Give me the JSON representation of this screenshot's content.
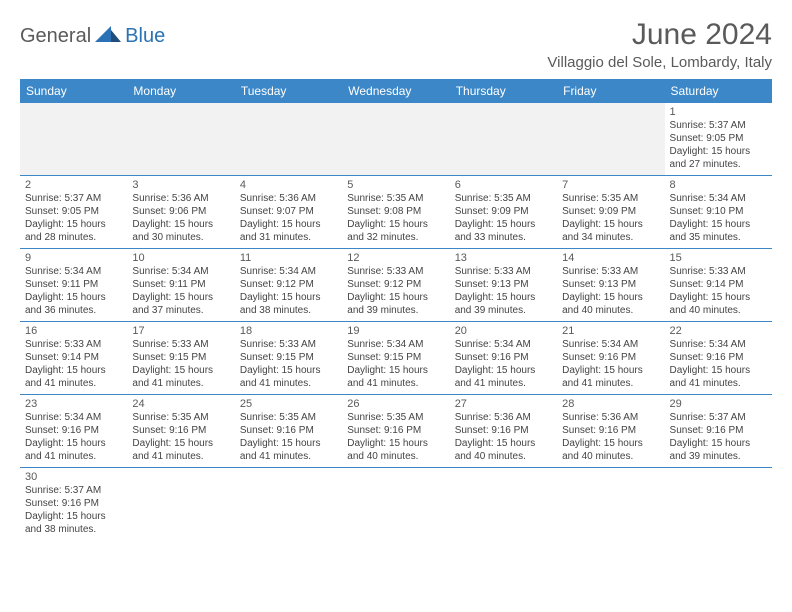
{
  "brand": {
    "part1": "General",
    "part2": "Blue"
  },
  "title": "June 2024",
  "location": "Villaggio del Sole, Lombardy, Italy",
  "colors": {
    "header_bg": "#3b87c8",
    "header_text": "#ffffff",
    "brand_gray": "#5a5a5a",
    "brand_blue": "#2a72b5",
    "cell_border": "#3b87c8",
    "empty_bg": "#f2f2f2"
  },
  "weekdays": [
    "Sunday",
    "Monday",
    "Tuesday",
    "Wednesday",
    "Thursday",
    "Friday",
    "Saturday"
  ],
  "days": {
    "1": {
      "sunrise": "5:37 AM",
      "sunset": "9:05 PM",
      "daylight": "15 hours and 27 minutes."
    },
    "2": {
      "sunrise": "5:37 AM",
      "sunset": "9:05 PM",
      "daylight": "15 hours and 28 minutes."
    },
    "3": {
      "sunrise": "5:36 AM",
      "sunset": "9:06 PM",
      "daylight": "15 hours and 30 minutes."
    },
    "4": {
      "sunrise": "5:36 AM",
      "sunset": "9:07 PM",
      "daylight": "15 hours and 31 minutes."
    },
    "5": {
      "sunrise": "5:35 AM",
      "sunset": "9:08 PM",
      "daylight": "15 hours and 32 minutes."
    },
    "6": {
      "sunrise": "5:35 AM",
      "sunset": "9:09 PM",
      "daylight": "15 hours and 33 minutes."
    },
    "7": {
      "sunrise": "5:35 AM",
      "sunset": "9:09 PM",
      "daylight": "15 hours and 34 minutes."
    },
    "8": {
      "sunrise": "5:34 AM",
      "sunset": "9:10 PM",
      "daylight": "15 hours and 35 minutes."
    },
    "9": {
      "sunrise": "5:34 AM",
      "sunset": "9:11 PM",
      "daylight": "15 hours and 36 minutes."
    },
    "10": {
      "sunrise": "5:34 AM",
      "sunset": "9:11 PM",
      "daylight": "15 hours and 37 minutes."
    },
    "11": {
      "sunrise": "5:34 AM",
      "sunset": "9:12 PM",
      "daylight": "15 hours and 38 minutes."
    },
    "12": {
      "sunrise": "5:33 AM",
      "sunset": "9:12 PM",
      "daylight": "15 hours and 39 minutes."
    },
    "13": {
      "sunrise": "5:33 AM",
      "sunset": "9:13 PM",
      "daylight": "15 hours and 39 minutes."
    },
    "14": {
      "sunrise": "5:33 AM",
      "sunset": "9:13 PM",
      "daylight": "15 hours and 40 minutes."
    },
    "15": {
      "sunrise": "5:33 AM",
      "sunset": "9:14 PM",
      "daylight": "15 hours and 40 minutes."
    },
    "16": {
      "sunrise": "5:33 AM",
      "sunset": "9:14 PM",
      "daylight": "15 hours and 41 minutes."
    },
    "17": {
      "sunrise": "5:33 AM",
      "sunset": "9:15 PM",
      "daylight": "15 hours and 41 minutes."
    },
    "18": {
      "sunrise": "5:33 AM",
      "sunset": "9:15 PM",
      "daylight": "15 hours and 41 minutes."
    },
    "19": {
      "sunrise": "5:34 AM",
      "sunset": "9:15 PM",
      "daylight": "15 hours and 41 minutes."
    },
    "20": {
      "sunrise": "5:34 AM",
      "sunset": "9:16 PM",
      "daylight": "15 hours and 41 minutes."
    },
    "21": {
      "sunrise": "5:34 AM",
      "sunset": "9:16 PM",
      "daylight": "15 hours and 41 minutes."
    },
    "22": {
      "sunrise": "5:34 AM",
      "sunset": "9:16 PM",
      "daylight": "15 hours and 41 minutes."
    },
    "23": {
      "sunrise": "5:34 AM",
      "sunset": "9:16 PM",
      "daylight": "15 hours and 41 minutes."
    },
    "24": {
      "sunrise": "5:35 AM",
      "sunset": "9:16 PM",
      "daylight": "15 hours and 41 minutes."
    },
    "25": {
      "sunrise": "5:35 AM",
      "sunset": "9:16 PM",
      "daylight": "15 hours and 41 minutes."
    },
    "26": {
      "sunrise": "5:35 AM",
      "sunset": "9:16 PM",
      "daylight": "15 hours and 40 minutes."
    },
    "27": {
      "sunrise": "5:36 AM",
      "sunset": "9:16 PM",
      "daylight": "15 hours and 40 minutes."
    },
    "28": {
      "sunrise": "5:36 AM",
      "sunset": "9:16 PM",
      "daylight": "15 hours and 40 minutes."
    },
    "29": {
      "sunrise": "5:37 AM",
      "sunset": "9:16 PM",
      "daylight": "15 hours and 39 minutes."
    },
    "30": {
      "sunrise": "5:37 AM",
      "sunset": "9:16 PM",
      "daylight": "15 hours and 38 minutes."
    }
  },
  "grid": [
    [
      null,
      null,
      null,
      null,
      null,
      null,
      "1"
    ],
    [
      "2",
      "3",
      "4",
      "5",
      "6",
      "7",
      "8"
    ],
    [
      "9",
      "10",
      "11",
      "12",
      "13",
      "14",
      "15"
    ],
    [
      "16",
      "17",
      "18",
      "19",
      "20",
      "21",
      "22"
    ],
    [
      "23",
      "24",
      "25",
      "26",
      "27",
      "28",
      "29"
    ],
    [
      "30",
      null,
      null,
      null,
      null,
      null,
      null
    ]
  ],
  "labels": {
    "sunrise": "Sunrise:",
    "sunset": "Sunset:",
    "daylight": "Daylight:"
  }
}
